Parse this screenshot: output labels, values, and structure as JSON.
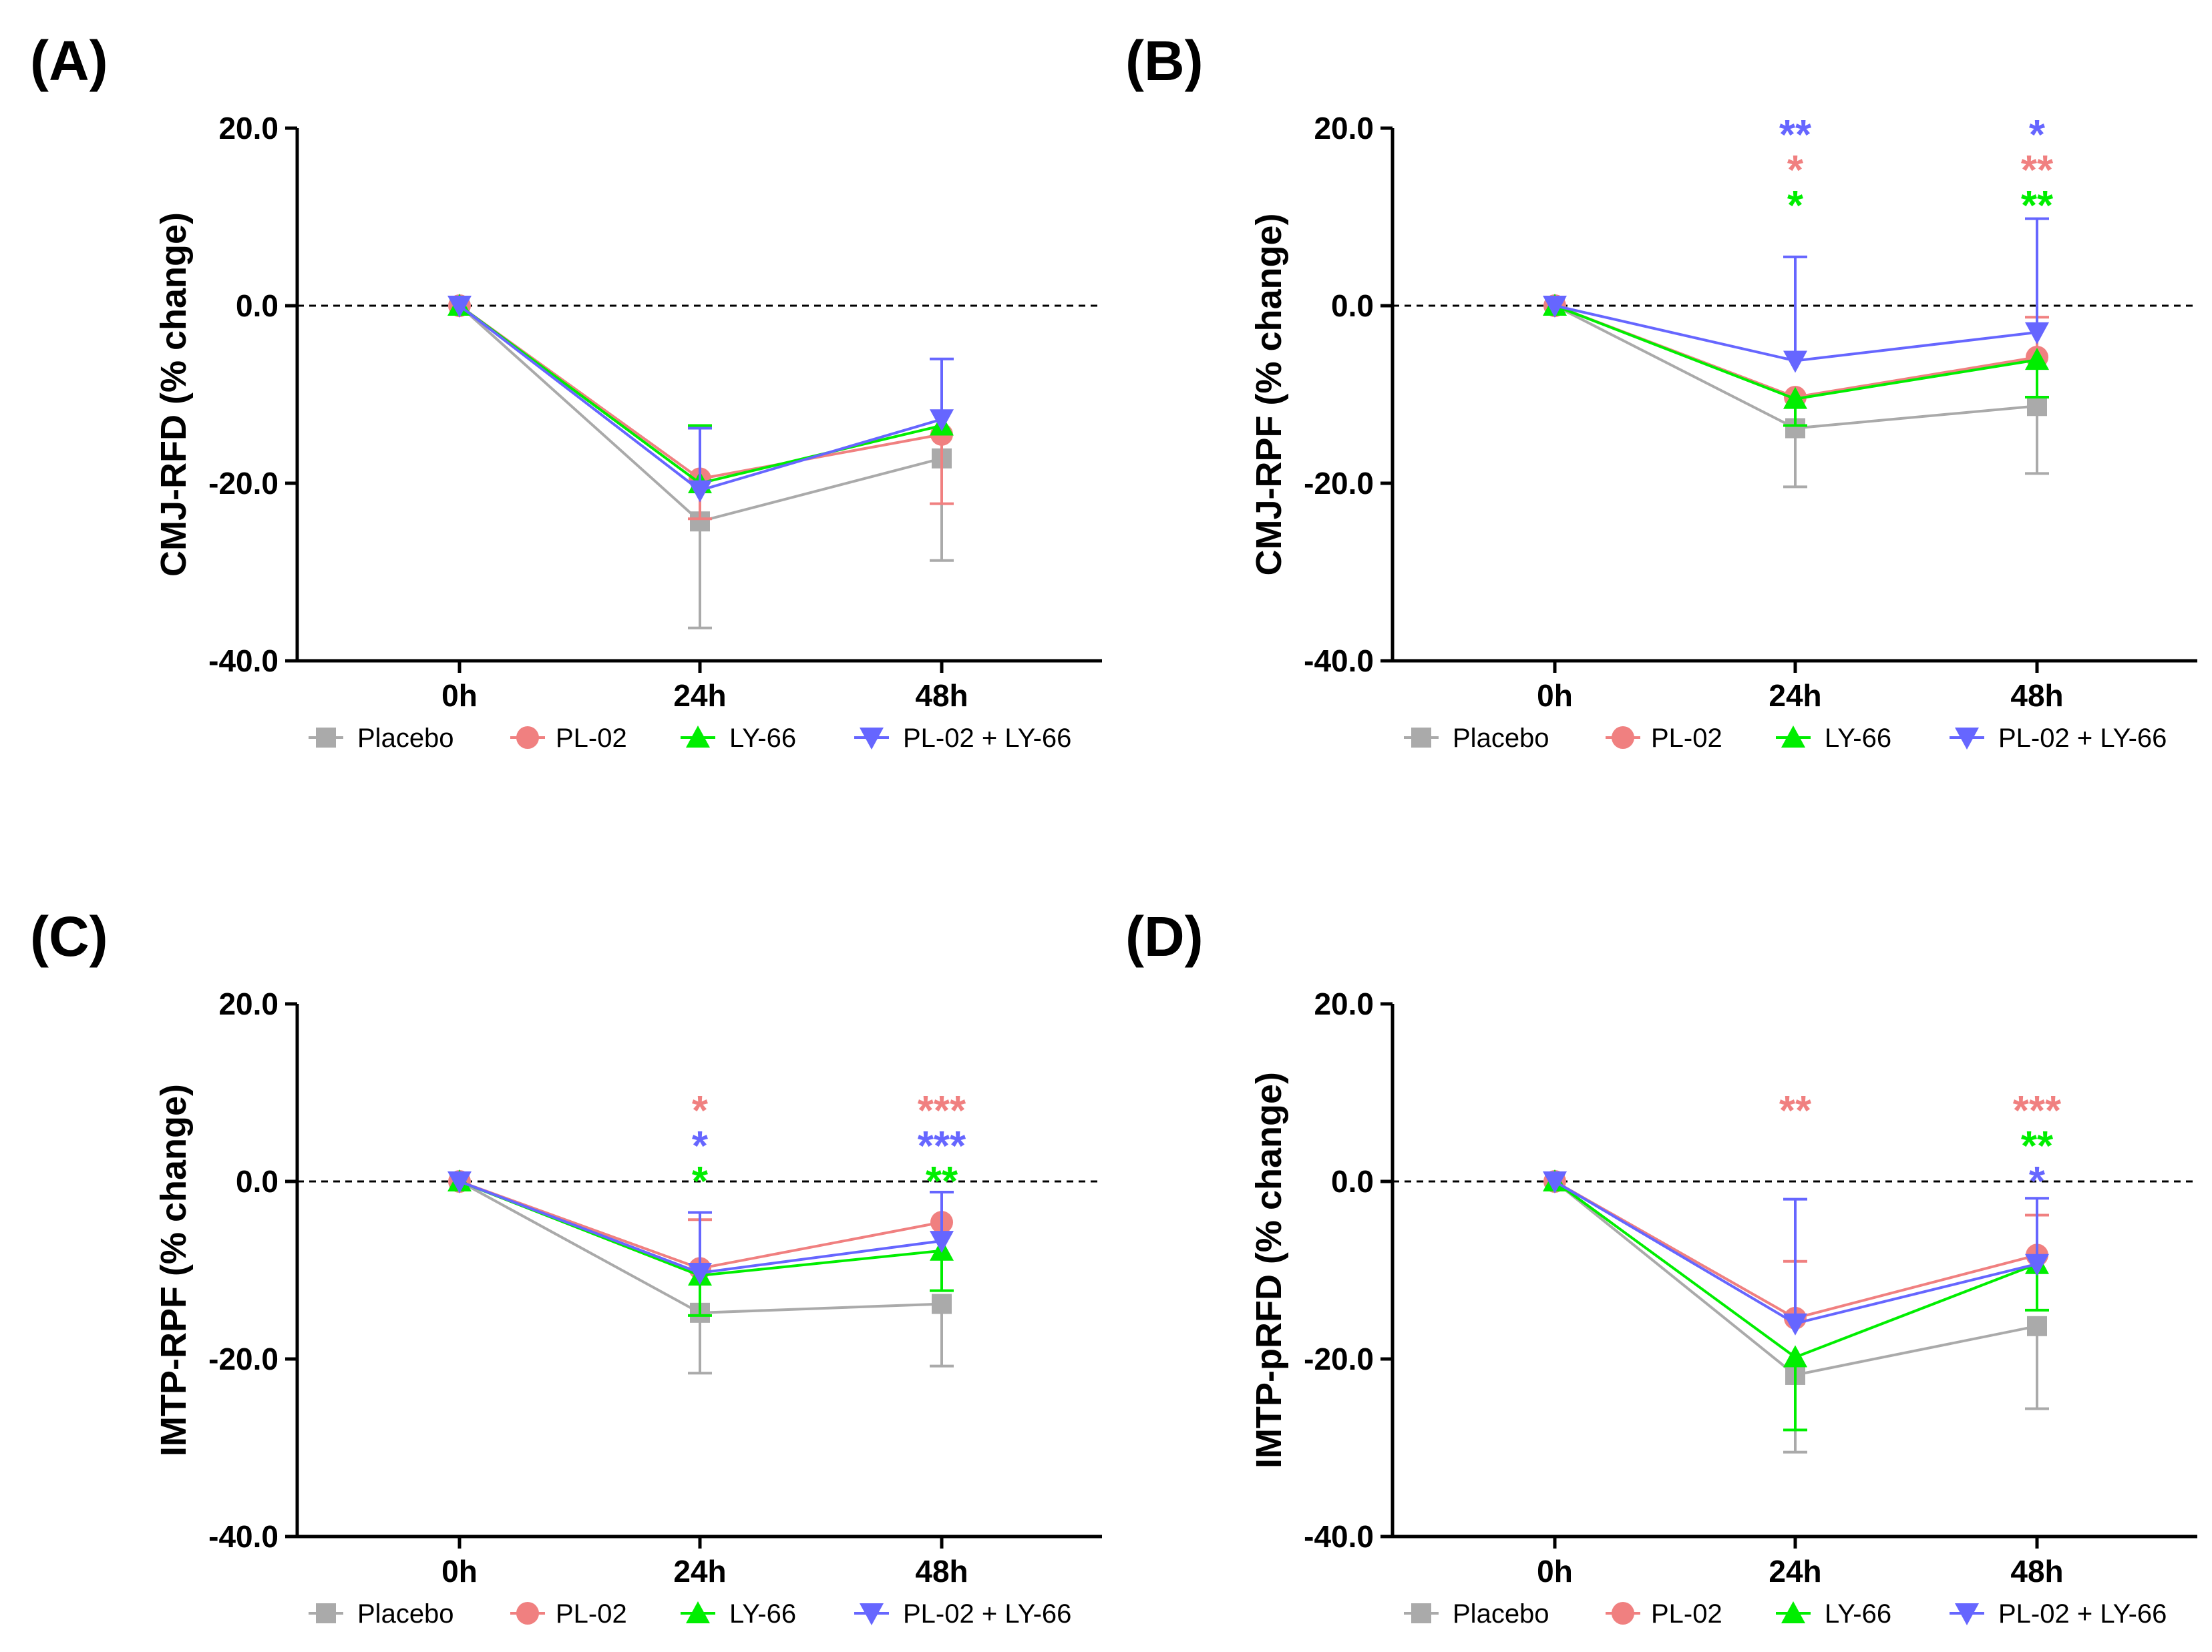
{
  "chart_data": [
    {
      "panel": "(A)",
      "type": "line",
      "title": "",
      "xlabel": "",
      "ylabel": "CMJ-RFD (% change)",
      "ylim": [
        -40,
        20
      ],
      "yticks": [
        "20.0",
        "0.0",
        "-20.0",
        "-40.0"
      ],
      "categories": [
        "0h",
        "24h",
        "48h"
      ],
      "reference_line": 0,
      "legend": "bottom",
      "series": [
        {
          "name": "Placebo",
          "color": "#aaaaaa",
          "marker": "square",
          "values": [
            0,
            -24.3,
            -17.2
          ],
          "err_up": [
            0,
            0,
            0
          ],
          "err_down": [
            0,
            12,
            11.5
          ]
        },
        {
          "name": "PL-02",
          "color": "#f08080",
          "marker": "circle",
          "values": [
            0,
            -19.5,
            -14.5
          ],
          "err_up": [
            0,
            0,
            0
          ],
          "err_down": [
            0,
            4.5,
            7.8
          ]
        },
        {
          "name": "LY-66",
          "color": "#00ee00",
          "marker": "triangle-up",
          "values": [
            0,
            -20,
            -13.5
          ],
          "err_up": [
            0,
            6.5,
            0
          ],
          "err_down": [
            0,
            0,
            0
          ]
        },
        {
          "name": "PL-02 + LY-66",
          "color": "#6666ff",
          "marker": "triangle-down",
          "values": [
            0,
            -20.8,
            -12.8
          ],
          "err_up": [
            0,
            7,
            6.8
          ],
          "err_down": [
            0,
            0,
            0
          ]
        }
      ],
      "annotations": []
    },
    {
      "panel": "(B)",
      "type": "line",
      "title": "",
      "xlabel": "",
      "ylabel": "CMJ-RPF (% change)",
      "ylim": [
        -40,
        20
      ],
      "yticks": [
        "20.0",
        "0.0",
        "-20.0",
        "-40.0"
      ],
      "categories": [
        "0h",
        "24h",
        "48h"
      ],
      "reference_line": 0,
      "legend": "bottom",
      "series": [
        {
          "name": "Placebo",
          "color": "#aaaaaa",
          "marker": "square",
          "values": [
            0,
            -13.8,
            -11.3
          ],
          "err_up": [
            0,
            0,
            0
          ],
          "err_down": [
            0,
            6.6,
            7.6
          ]
        },
        {
          "name": "PL-02",
          "color": "#f08080",
          "marker": "circle",
          "values": [
            0,
            -10.3,
            -5.8
          ],
          "err_up": [
            0,
            0,
            4.5
          ],
          "err_down": [
            0,
            0,
            0
          ]
        },
        {
          "name": "LY-66",
          "color": "#00ee00",
          "marker": "triangle-up",
          "values": [
            0,
            -10.5,
            -6.1
          ],
          "err_up": [
            0,
            0,
            0
          ],
          "err_down": [
            0,
            3,
            4.2
          ]
        },
        {
          "name": "PL-02 + LY-66",
          "color": "#6666ff",
          "marker": "triangle-down",
          "values": [
            0,
            -6.2,
            -3
          ],
          "err_up": [
            0,
            11.7,
            12.8
          ],
          "err_down": [
            0,
            0,
            0
          ]
        }
      ],
      "annotations": [
        {
          "category": "24h",
          "lines": [
            {
              "text": "**",
              "series": "PL-02 + LY-66"
            },
            {
              "text": "*",
              "series": "PL-02"
            },
            {
              "text": "*",
              "series": "LY-66"
            }
          ]
        },
        {
          "category": "48h",
          "lines": [
            {
              "text": "*",
              "series": "PL-02 + LY-66"
            },
            {
              "text": "**",
              "series": "PL-02"
            },
            {
              "text": "**",
              "series": "LY-66"
            }
          ]
        }
      ]
    },
    {
      "panel": "(C)",
      "type": "line",
      "title": "",
      "xlabel": "",
      "ylabel": "IMTP-RPF (% change)",
      "ylim": [
        -40,
        20
      ],
      "yticks": [
        "20.0",
        "0.0",
        "-20.0",
        "-40.0"
      ],
      "categories": [
        "0h",
        "24h",
        "48h"
      ],
      "reference_line": 0,
      "legend": "bottom",
      "series": [
        {
          "name": "Placebo",
          "color": "#aaaaaa",
          "marker": "square",
          "values": [
            0,
            -14.8,
            -13.8
          ],
          "err_up": [
            0,
            0,
            0
          ],
          "err_down": [
            0,
            6.8,
            7
          ]
        },
        {
          "name": "PL-02",
          "color": "#f08080",
          "marker": "circle",
          "values": [
            0,
            -9.8,
            -4.6
          ],
          "err_up": [
            0,
            5.5,
            0
          ],
          "err_down": [
            0,
            0,
            0
          ]
        },
        {
          "name": "LY-66",
          "color": "#00ee00",
          "marker": "triangle-up",
          "values": [
            0,
            -10.6,
            -7.8
          ],
          "err_up": [
            0,
            0,
            0
          ],
          "err_down": [
            0,
            4.5,
            4.5
          ]
        },
        {
          "name": "PL-02 + LY-66",
          "color": "#6666ff",
          "marker": "triangle-down",
          "values": [
            0,
            -10.3,
            -6.7
          ],
          "err_up": [
            0,
            6.8,
            5.5
          ],
          "err_down": [
            0,
            0,
            0
          ]
        }
      ],
      "annotations": [
        {
          "category": "24h",
          "lines": [
            {
              "text": "*",
              "series": "PL-02"
            },
            {
              "text": "*",
              "series": "PL-02 + LY-66"
            },
            {
              "text": "*",
              "series": "LY-66"
            }
          ]
        },
        {
          "category": "48h",
          "lines": [
            {
              "text": "***",
              "series": "PL-02"
            },
            {
              "text": "***",
              "series": "PL-02 + LY-66"
            },
            {
              "text": "**",
              "series": "LY-66"
            }
          ]
        }
      ]
    },
    {
      "panel": "(D)",
      "type": "line",
      "title": "",
      "xlabel": "",
      "ylabel": "IMTP-pRFD (% change)",
      "ylim": [
        -40,
        20
      ],
      "yticks": [
        "20.0",
        "0.0",
        "-20.0",
        "-40.0"
      ],
      "categories": [
        "0h",
        "24h",
        "48h"
      ],
      "reference_line": 0,
      "legend": "bottom",
      "series": [
        {
          "name": "Placebo",
          "color": "#aaaaaa",
          "marker": "square",
          "values": [
            0,
            -21.8,
            -16.3
          ],
          "err_up": [
            0,
            0,
            0
          ],
          "err_down": [
            0,
            8.7,
            9.3
          ]
        },
        {
          "name": "PL-02",
          "color": "#f08080",
          "marker": "circle",
          "values": [
            0,
            -15.4,
            -8.3
          ],
          "err_up": [
            0,
            6.4,
            4.5
          ],
          "err_down": [
            0,
            0,
            0
          ]
        },
        {
          "name": "LY-66",
          "color": "#00ee00",
          "marker": "triangle-up",
          "values": [
            0,
            -19.8,
            -9.3
          ],
          "err_up": [
            0,
            0,
            0
          ],
          "err_down": [
            0,
            8.2,
            5.2
          ]
        },
        {
          "name": "PL-02 + LY-66",
          "color": "#6666ff",
          "marker": "triangle-down",
          "values": [
            0,
            -16,
            -9.3
          ],
          "err_up": [
            0,
            14,
            7.4
          ],
          "err_down": [
            0,
            0,
            0
          ]
        }
      ],
      "annotations": [
        {
          "category": "24h",
          "lines": [
            {
              "text": "**",
              "series": "PL-02"
            }
          ]
        },
        {
          "category": "48h",
          "lines": [
            {
              "text": "***",
              "series": "PL-02"
            },
            {
              "text": "**",
              "series": "LY-66"
            },
            {
              "text": "*",
              "series": "PL-02 + LY-66"
            }
          ]
        }
      ]
    }
  ]
}
